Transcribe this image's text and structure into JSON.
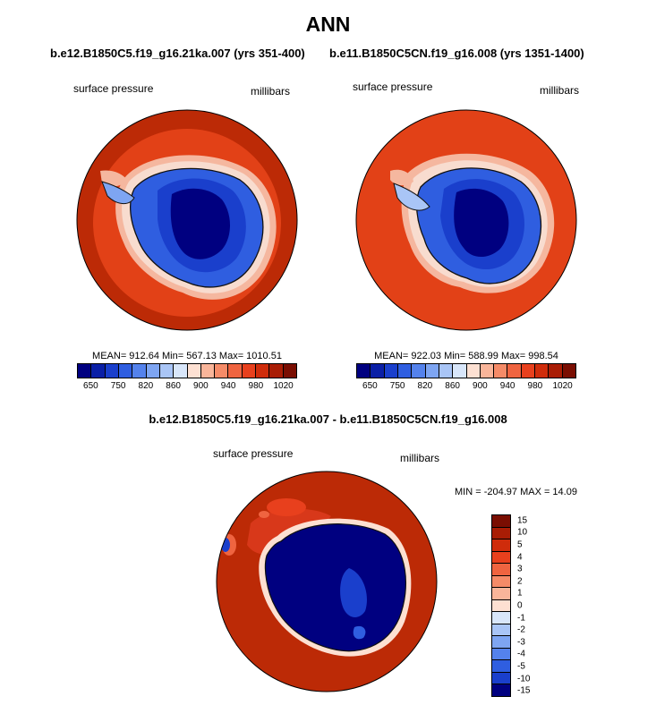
{
  "title": "ANN",
  "panel_left": {
    "case": "b.e12.B1850C5.f19_g16.21ka.007 (yrs 351-400)",
    "variable": "surface pressure",
    "units": "millibars",
    "stats": "MEAN= 912.64  Min= 567.13  Max= 1010.51"
  },
  "panel_right": {
    "case": "b.e11.B1850C5CN.f19_g16.008 (yrs 1351-1400)",
    "variable": "surface pressure",
    "units": "millibars",
    "stats": "MEAN= 922.03  Min= 588.99  Max= 998.54"
  },
  "abs_colorbar": {
    "colors": [
      "#000080",
      "#0a1fa6",
      "#1a3fcc",
      "#2f5ee0",
      "#5482ec",
      "#7ea5f2",
      "#a9c5f6",
      "#d8e6fa",
      "#fde0d2",
      "#f9b59a",
      "#f58b68",
      "#ef6440",
      "#e8401d",
      "#cf2c0b",
      "#a91d05",
      "#7a0e02"
    ],
    "labels": [
      "650",
      "750",
      "820",
      "860",
      "900",
      "940",
      "980",
      "1020"
    ]
  },
  "diff_title": "b.e12.B1850C5.f19_g16.21ka.007 - b.e11.B1850C5CN.f19_g16.008",
  "panel_diff": {
    "variable": "surface pressure",
    "units": "millibars",
    "stats": "MIN = -204.97 MAX =  14.09"
  },
  "diff_colorbar": {
    "colors": [
      "#7a0e02",
      "#a91d05",
      "#cf2c0b",
      "#e8401d",
      "#ef6440",
      "#f58b68",
      "#f9b59a",
      "#fde0d2",
      "#d8e6fa",
      "#a9c5f6",
      "#7ea5f2",
      "#5482ec",
      "#2f5ee0",
      "#1a3fcc",
      "#000080"
    ],
    "labels": [
      "15",
      "10",
      "5",
      "4",
      "3",
      "2",
      "1",
      "0",
      "-1",
      "-2",
      "-3",
      "-4",
      "-5",
      "-10",
      "-15"
    ]
  }
}
